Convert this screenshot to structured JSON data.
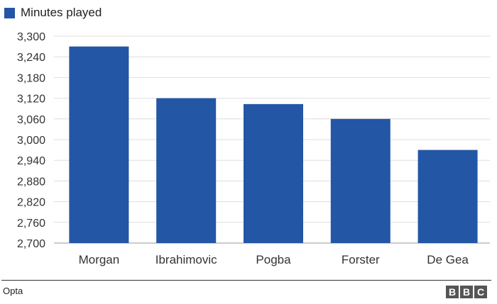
{
  "chart_data": {
    "type": "bar",
    "legend": {
      "label": "Minutes played",
      "position": "top-left"
    },
    "categories": [
      "Morgan",
      "Ibrahimovic",
      "Pogba",
      "Forster",
      "De Gea"
    ],
    "series": [
      {
        "name": "Minutes played",
        "values": [
          3270,
          3120,
          3103,
          3060,
          2970
        ]
      }
    ],
    "ylim": [
      2700,
      3300
    ],
    "yticks": [
      2700,
      2760,
      2820,
      2880,
      2940,
      3000,
      3060,
      3120,
      3180,
      3240,
      3300
    ],
    "ytick_labels": [
      "2,700",
      "2,760",
      "2,820",
      "2,880",
      "2,940",
      "3,000",
      "3,060",
      "3,120",
      "3,180",
      "3,240",
      "3,300"
    ],
    "grid": true,
    "bar_color": "#2356a5"
  },
  "footer": {
    "source": "Opta",
    "logo_letters": [
      "B",
      "B",
      "C"
    ]
  }
}
